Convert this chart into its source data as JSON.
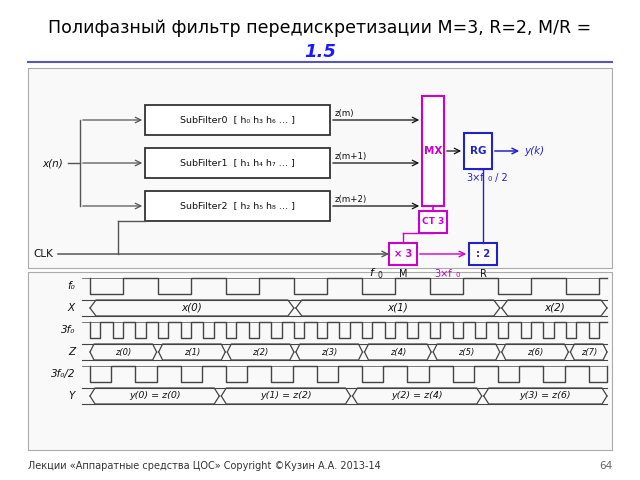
{
  "title_line1": "Полифазный фильтр передискретизации М=3, R=2, M/R =",
  "title_line2": "1.5",
  "footer_text": "Лекции «Аппаратные средства ЦОС» Copyright ©Кузин А.А. 2013-14",
  "page_number": "64",
  "bg_color": "#ffffff",
  "title_color": "#000000",
  "title2_color": "#1a1aff",
  "line_color": "#5555bb",
  "diagram_border": "#aaaaaa",
  "sf_border": "#333333",
  "mx_color": "#cc00cc",
  "rg_color": "#2222cc",
  "ct_color": "#cc00cc",
  "x3_color": "#cc00cc",
  "div2_color": "#2222cc",
  "clk_line": "#555555",
  "sig_color": "#444444",
  "footer_color": "#333333",
  "page_color": "#666666",
  "subfilters": [
    {
      "label": "SubFilter0",
      "coefs": "[ h₀ h₃ h₆ … ]",
      "zm": "z(m)"
    },
    {
      "label": "SubFilter1",
      "coefs": "[ h₁ h₄ h₇ … ]",
      "zm": "z(m+1)"
    },
    {
      "label": "SubFilter2",
      "coefs": "[ h₂ h₅ h₈ … ]",
      "zm": "z(m+2)"
    }
  ],
  "timing_labels": [
    "f₀",
    "X",
    "3f₀",
    "Z",
    "3f₀/2",
    "Y"
  ],
  "x_signals": [
    "x(0)",
    "x(1)",
    "x(2)"
  ],
  "z_signals": [
    "z(0)",
    "z(1)",
    "z(2)",
    "z(3)",
    "z(4)",
    "z(5)",
    "z(6)",
    "z(7)"
  ],
  "y_signals": [
    "y(0) = z(0)",
    "y(1) = z(2)",
    "y(2) = z(4)",
    "y(3) = z(6)"
  ]
}
